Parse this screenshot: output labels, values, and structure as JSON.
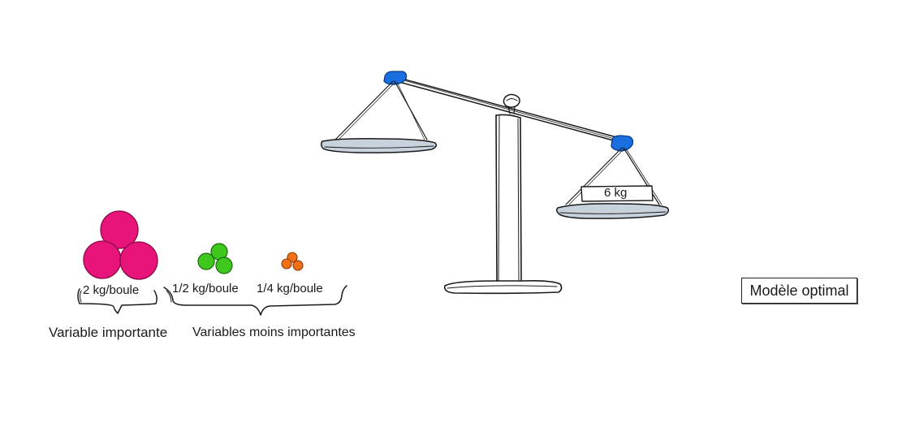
{
  "balls": {
    "heavy": {
      "label": "2 kg/boule",
      "color": "#e8147a"
    },
    "medium": {
      "label": "1/2 kg/boule",
      "color": "#3ec81e"
    },
    "light": {
      "label": "1/4 kg/boule",
      "color": "#f07018"
    }
  },
  "groups": {
    "important": "Variable importante",
    "less_important": "Variables moins importantes"
  },
  "scale": {
    "right_pan_weight": "6 kg",
    "pivot_color": "#1a6fe0",
    "pan_color": "#c8d2dc"
  },
  "model_label": "Modèle optimal"
}
